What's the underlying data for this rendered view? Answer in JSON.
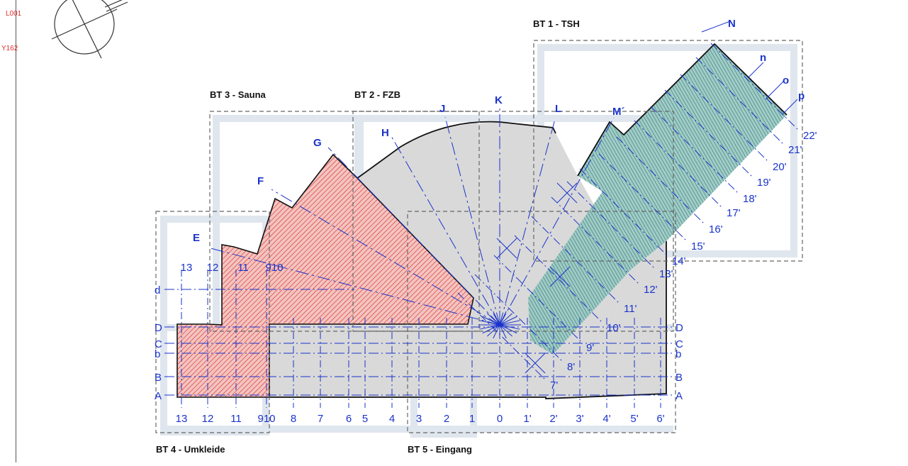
{
  "side_marks": [
    "L001",
    "Y162"
  ],
  "building_sections": {
    "bt1": "BT 1 - TSH",
    "bt2": "BT 2 - FZB",
    "bt3": "BT 3 - Sauna",
    "bt4": "BT 4 - Umkleide",
    "bt5": "BT 5 - Eingang"
  },
  "radial_axes": [
    "E",
    "F",
    "G",
    "H",
    "J",
    "K",
    "L",
    "M´",
    "N",
    "n",
    "o",
    "p"
  ],
  "horizontal_axes": [
    "d",
    "D",
    "C",
    "b",
    "B",
    "A"
  ],
  "bottom_axes": [
    "13",
    "12",
    "11",
    "910",
    "8",
    "7",
    "6",
    "5",
    "4",
    "3",
    "2",
    "1",
    "0",
    "1'",
    "2'",
    "3'",
    "4'",
    "5'",
    "6'"
  ],
  "upper_axes": [
    "13",
    "12",
    "11",
    "910"
  ],
  "diagonal_axes": [
    "7'",
    "8'",
    "9'",
    "10'",
    "11'",
    "12'",
    "13'",
    "14'",
    "15'",
    "16'",
    "17'",
    "18'",
    "19'",
    "20'",
    "21'",
    "22'"
  ],
  "colors": {
    "axis_blue": "#1a33cc",
    "red_hatch": "#d93030",
    "red_fill": "#f3c4c0",
    "teal_fill": "#9cc9c4",
    "teal_hatch": "#1d6a60",
    "grey_fill": "#d9d9d9",
    "frame_blue": "#dfe6ee"
  }
}
